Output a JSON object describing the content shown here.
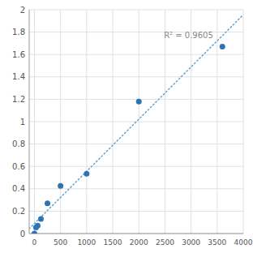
{
  "chart_data": {
    "type": "scatter",
    "x": [
      0,
      31.25,
      62.5,
      125,
      250,
      500,
      1000,
      2000,
      3600
    ],
    "values": [
      0.0,
      0.055,
      0.07,
      0.13,
      0.27,
      0.425,
      0.535,
      1.18,
      1.67
    ],
    "color": "#2E74B5",
    "marker": "circle",
    "trend_line": {
      "x": [
        -100,
        4000
      ],
      "values": [
        0.0428,
        1.9552
      ],
      "color": "#5BA3D9",
      "line_style": "dotted"
    },
    "annotations": [
      {
        "text": "R² = 0.9605",
        "x": 2480,
        "y": 1.82,
        "color": "#888888"
      }
    ],
    "xlim": [
      -100,
      4000
    ],
    "ylim": [
      0,
      2
    ],
    "xticks": [
      0,
      500,
      1000,
      1500,
      2000,
      2500,
      3000,
      3500,
      4000
    ],
    "yticks": [
      0,
      0.2,
      0.4,
      0.6,
      0.8,
      1,
      1.2,
      1.4,
      1.6,
      1.8,
      2
    ],
    "grid": true
  }
}
